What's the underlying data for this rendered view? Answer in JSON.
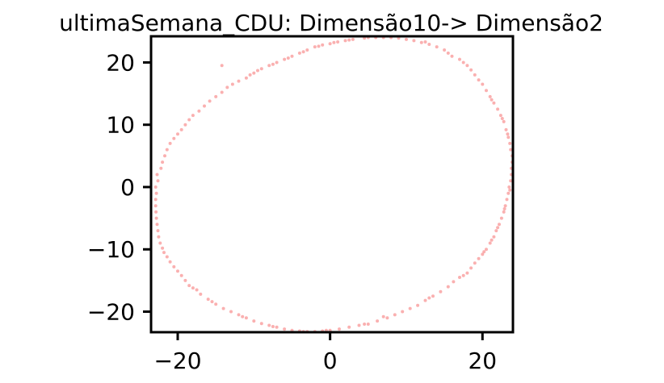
{
  "chart_data": {
    "type": "scatter",
    "title": "ultimaSemana_CDU: Dimensão10-> Dimensão2",
    "xlabel": "",
    "ylabel": "",
    "xlim": [
      -23.5,
      24
    ],
    "ylim": [
      -23.3,
      24.2
    ],
    "xticks": [
      -20,
      0,
      20
    ],
    "yticks": [
      -20,
      -10,
      0,
      10,
      20
    ],
    "xtick_labels": [
      "−20",
      "0",
      "20"
    ],
    "ytick_labels": [
      "−20",
      "−10",
      "0",
      "10",
      "20"
    ],
    "grid": false,
    "legend": "none",
    "point_color": "#f77b7b",
    "point_alpha": 0.6,
    "points": [
      [
        -14.2,
        19.5
      ],
      [
        6.0,
        24.0
      ],
      [
        8.0,
        24.0
      ],
      [
        10.0,
        23.7
      ],
      [
        12.0,
        23.2
      ],
      [
        14.0,
        22.5
      ],
      [
        15.5,
        21.5
      ],
      [
        17.0,
        20.5
      ],
      [
        18.0,
        19.5
      ],
      [
        19.0,
        18.0
      ],
      [
        20.0,
        16.5
      ],
      [
        21.0,
        14.5
      ],
      [
        22.0,
        12.5
      ],
      [
        22.8,
        10.5
      ],
      [
        23.4,
        8.0
      ],
      [
        23.7,
        6.0
      ],
      [
        23.9,
        4.0
      ],
      [
        23.8,
        2.0
      ],
      [
        23.5,
        0.0
      ],
      [
        23.2,
        -2.0
      ],
      [
        22.8,
        -4.0
      ],
      [
        22.2,
        -6.0
      ],
      [
        21.5,
        -8.0
      ],
      [
        20.5,
        -10.0
      ],
      [
        19.5,
        -11.5
      ],
      [
        18.5,
        -13.0
      ],
      [
        17.0,
        -14.5
      ],
      [
        15.5,
        -16.0
      ],
      [
        13.5,
        -17.5
      ],
      [
        11.5,
        -19.0
      ],
      [
        9.5,
        -20.0
      ],
      [
        7.5,
        -21.0
      ],
      [
        5.0,
        -22.0
      ],
      [
        2.5,
        -22.5
      ],
      [
        0.0,
        -23.0
      ],
      [
        -2.0,
        -23.2
      ],
      [
        -4.0,
        -23.1
      ],
      [
        -6.0,
        -22.8
      ],
      [
        -8.0,
        -22.2
      ],
      [
        -10.0,
        -21.5
      ],
      [
        -12.0,
        -20.5
      ],
      [
        -14.0,
        -19.5
      ],
      [
        -16.0,
        -18.0
      ],
      [
        -17.5,
        -16.5
      ],
      [
        -19.0,
        -15.0
      ],
      [
        -20.0,
        -13.5
      ],
      [
        -21.0,
        -12.0
      ],
      [
        -21.8,
        -10.5
      ],
      [
        -22.3,
        -9.0
      ],
      [
        -22.6,
        -7.0
      ],
      [
        -22.8,
        -5.0
      ],
      [
        -22.9,
        -3.0
      ],
      [
        -22.8,
        -1.0
      ],
      [
        -22.6,
        1.0
      ],
      [
        -22.2,
        3.0
      ],
      [
        -21.7,
        5.0
      ],
      [
        -21.0,
        7.0
      ],
      [
        -20.0,
        8.5
      ],
      [
        -19.0,
        10.0
      ],
      [
        -18.0,
        11.5
      ],
      [
        -16.5,
        13.0
      ],
      [
        -15.0,
        14.5
      ],
      [
        -13.5,
        16.0
      ],
      [
        -12.0,
        17.0
      ],
      [
        -10.5,
        18.0
      ],
      [
        -9.0,
        19.0
      ],
      [
        -7.0,
        20.0
      ],
      [
        -5.0,
        21.0
      ],
      [
        -3.0,
        22.0
      ],
      [
        -1.0,
        22.8
      ],
      [
        1.0,
        23.3
      ],
      [
        3.0,
        23.7
      ],
      [
        4.5,
        23.9
      ],
      [
        -11.0,
        17.5
      ],
      [
        -8.0,
        19.5
      ],
      [
        -6.0,
        20.5
      ],
      [
        -4.0,
        21.5
      ],
      [
        -2.0,
        22.5
      ],
      [
        0.0,
        23.0
      ],
      [
        2.0,
        23.5
      ],
      [
        9.0,
        23.9
      ],
      [
        11.0,
        23.5
      ],
      [
        13.0,
        22.9
      ],
      [
        16.0,
        21.0
      ],
      [
        18.5,
        18.8
      ],
      [
        19.5,
        17.2
      ],
      [
        20.5,
        15.5
      ],
      [
        21.5,
        13.5
      ],
      [
        22.4,
        11.5
      ],
      [
        23.1,
        9.2
      ],
      [
        23.6,
        7.0
      ],
      [
        23.9,
        5.0
      ],
      [
        23.7,
        1.0
      ],
      [
        23.4,
        -1.0
      ],
      [
        23.0,
        -3.0
      ],
      [
        22.5,
        -5.0
      ],
      [
        21.8,
        -7.0
      ],
      [
        21.0,
        -9.0
      ],
      [
        20.0,
        -10.8
      ],
      [
        19.0,
        -12.2
      ],
      [
        18.0,
        -13.8
      ],
      [
        16.2,
        -15.2
      ],
      [
        14.5,
        -16.8
      ],
      [
        12.5,
        -18.2
      ],
      [
        10.5,
        -19.5
      ],
      [
        8.5,
        -20.5
      ],
      [
        6.2,
        -21.5
      ],
      [
        3.8,
        -22.2
      ],
      [
        1.2,
        -22.8
      ],
      [
        -1.0,
        -23.1
      ],
      [
        -3.0,
        -23.2
      ],
      [
        -5.0,
        -23.0
      ],
      [
        -7.0,
        -22.5
      ],
      [
        -9.0,
        -21.9
      ],
      [
        -11.0,
        -21.0
      ],
      [
        -13.0,
        -20.0
      ],
      [
        -15.0,
        -18.8
      ],
      [
        -17.0,
        -17.2
      ],
      [
        -18.5,
        -15.8
      ],
      [
        -19.5,
        -14.2
      ],
      [
        -20.5,
        -12.8
      ],
      [
        -21.4,
        -11.2
      ],
      [
        -22.0,
        -9.8
      ],
      [
        -22.5,
        -8.0
      ],
      [
        -22.7,
        -6.0
      ],
      [
        -22.85,
        -4.0
      ],
      [
        -22.9,
        -2.0
      ],
      [
        -22.9,
        0.0
      ],
      [
        -22.7,
        2.0
      ],
      [
        -22.0,
        4.0
      ],
      [
        -21.4,
        6.0
      ],
      [
        -20.5,
        7.8
      ],
      [
        -19.5,
        9.2
      ],
      [
        -18.5,
        10.8
      ],
      [
        -17.2,
        12.2
      ],
      [
        -15.8,
        13.8
      ],
      [
        -14.2,
        15.2
      ],
      [
        -12.8,
        16.5
      ],
      [
        -10.0,
        18.3
      ],
      [
        -9.5,
        18.7
      ],
      [
        -7.5,
        19.7
      ],
      [
        -5.5,
        20.7
      ],
      [
        -3.5,
        21.7
      ],
      [
        -1.5,
        22.6
      ],
      [
        0.5,
        23.2
      ],
      [
        2.5,
        23.6
      ],
      [
        5.0,
        24.0
      ],
      [
        7.0,
        24.0
      ],
      [
        12.5,
        23.3
      ],
      [
        15.0,
        22.0
      ],
      [
        17.5,
        20.0
      ],
      [
        21.2,
        14.0
      ],
      [
        22.6,
        11.0
      ],
      [
        23.3,
        8.5
      ],
      [
        23.8,
        3.0
      ],
      [
        23.6,
        -0.5
      ],
      [
        22.9,
        -3.5
      ],
      [
        22.0,
        -6.5
      ],
      [
        21.2,
        -8.5
      ],
      [
        20.2,
        -10.4
      ],
      [
        17.5,
        -14.2
      ],
      [
        13.0,
        -17.8
      ],
      [
        7.0,
        -20.8
      ],
      [
        4.5,
        -22.0
      ],
      [
        -0.5,
        -23.0
      ],
      [
        -3.5,
        -23.2
      ],
      [
        -7.5,
        -22.4
      ],
      [
        -11.5,
        -20.8
      ],
      [
        -15.5,
        -18.4
      ],
      [
        -18.0,
        -16.2
      ]
    ]
  }
}
